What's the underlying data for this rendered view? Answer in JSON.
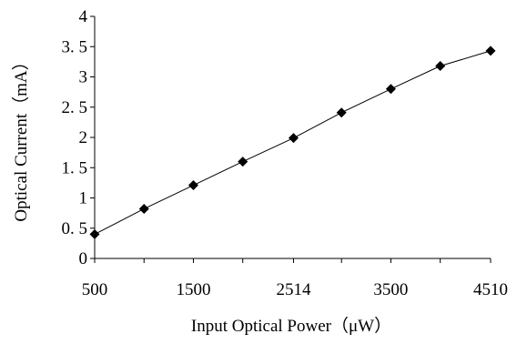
{
  "chart_data": {
    "type": "line",
    "title": "",
    "xlabel": "Input Optical Power（μW）",
    "ylabel": "Optical Current（mA）",
    "xlim": [
      500,
      4510
    ],
    "ylim": [
      0,
      4
    ],
    "x_ticks": [
      {
        "value": 500,
        "label": "500"
      },
      {
        "value": 1500,
        "label": "1500"
      },
      {
        "value": 2514,
        "label": "2514"
      },
      {
        "value": 3500,
        "label": "3500"
      },
      {
        "value": 4510,
        "label": "4510"
      }
    ],
    "y_ticks": [
      {
        "value": 0,
        "label": "0"
      },
      {
        "value": 0.5,
        "label": "0. 5"
      },
      {
        "value": 1,
        "label": "1"
      },
      {
        "value": 1.5,
        "label": "1. 5"
      },
      {
        "value": 2,
        "label": "2"
      },
      {
        "value": 2.5,
        "label": "2. 5"
      },
      {
        "value": 3,
        "label": "3"
      },
      {
        "value": 3.5,
        "label": "3. 5"
      },
      {
        "value": 4,
        "label": "4"
      }
    ],
    "grid": false,
    "marker": "diamond",
    "colors": {
      "line": "#000000",
      "marker": "#000000",
      "axis": "#000000"
    },
    "series": [
      {
        "x": [
          500,
          1000,
          1500,
          2000,
          2514,
          3000,
          3500,
          4000,
          4510
        ],
        "y": [
          0.4,
          0.82,
          1.21,
          1.6,
          1.99,
          2.41,
          2.8,
          3.18,
          3.43
        ]
      }
    ]
  }
}
